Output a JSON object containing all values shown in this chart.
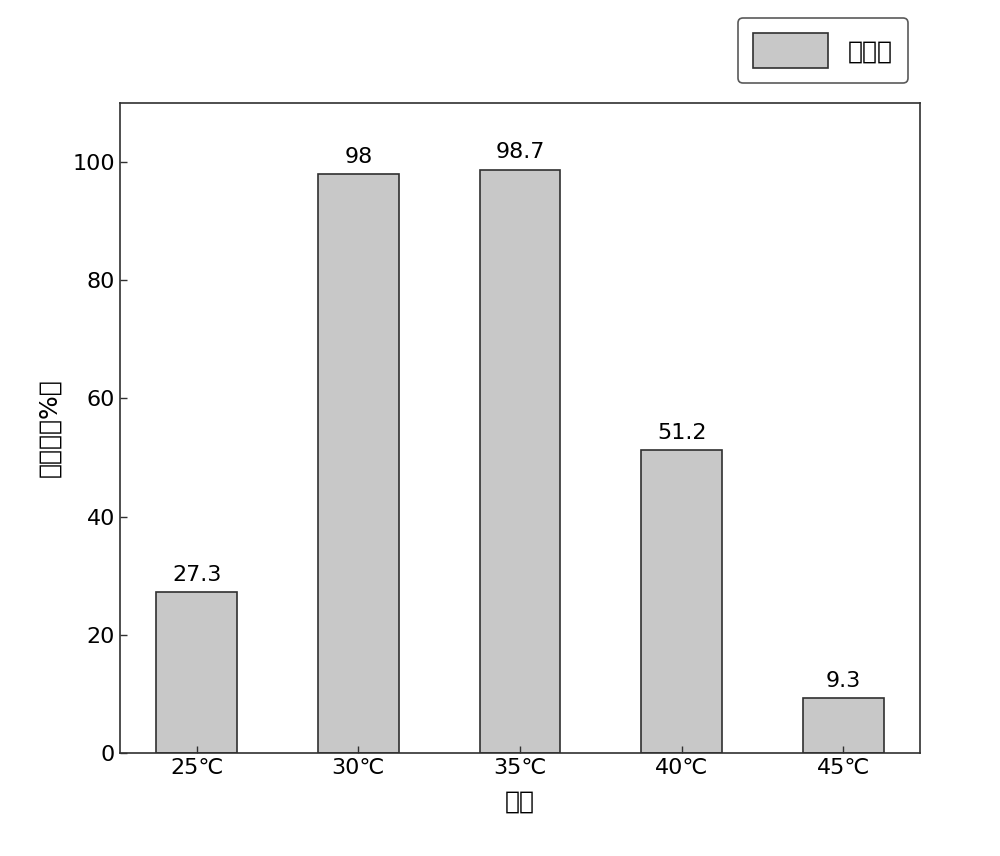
{
  "categories": [
    "25℃",
    "30℃",
    "35℃",
    "40℃",
    "45℃"
  ],
  "values": [
    27.3,
    98.0,
    98.7,
    51.2,
    9.3
  ],
  "bar_color": "#c8c8c8",
  "bar_edgecolor": "#303030",
  "ylabel": "降解率（%）",
  "xlabel": "温度",
  "legend_label": "降解率",
  "ylim": [
    0,
    110
  ],
  "yticks": [
    0,
    20,
    40,
    60,
    80,
    100
  ],
  "bar_width": 0.5,
  "label_fontsize": 18,
  "tick_fontsize": 16,
  "annotation_fontsize": 16,
  "background_color": "#ffffff",
  "legend_fontsize": 18
}
